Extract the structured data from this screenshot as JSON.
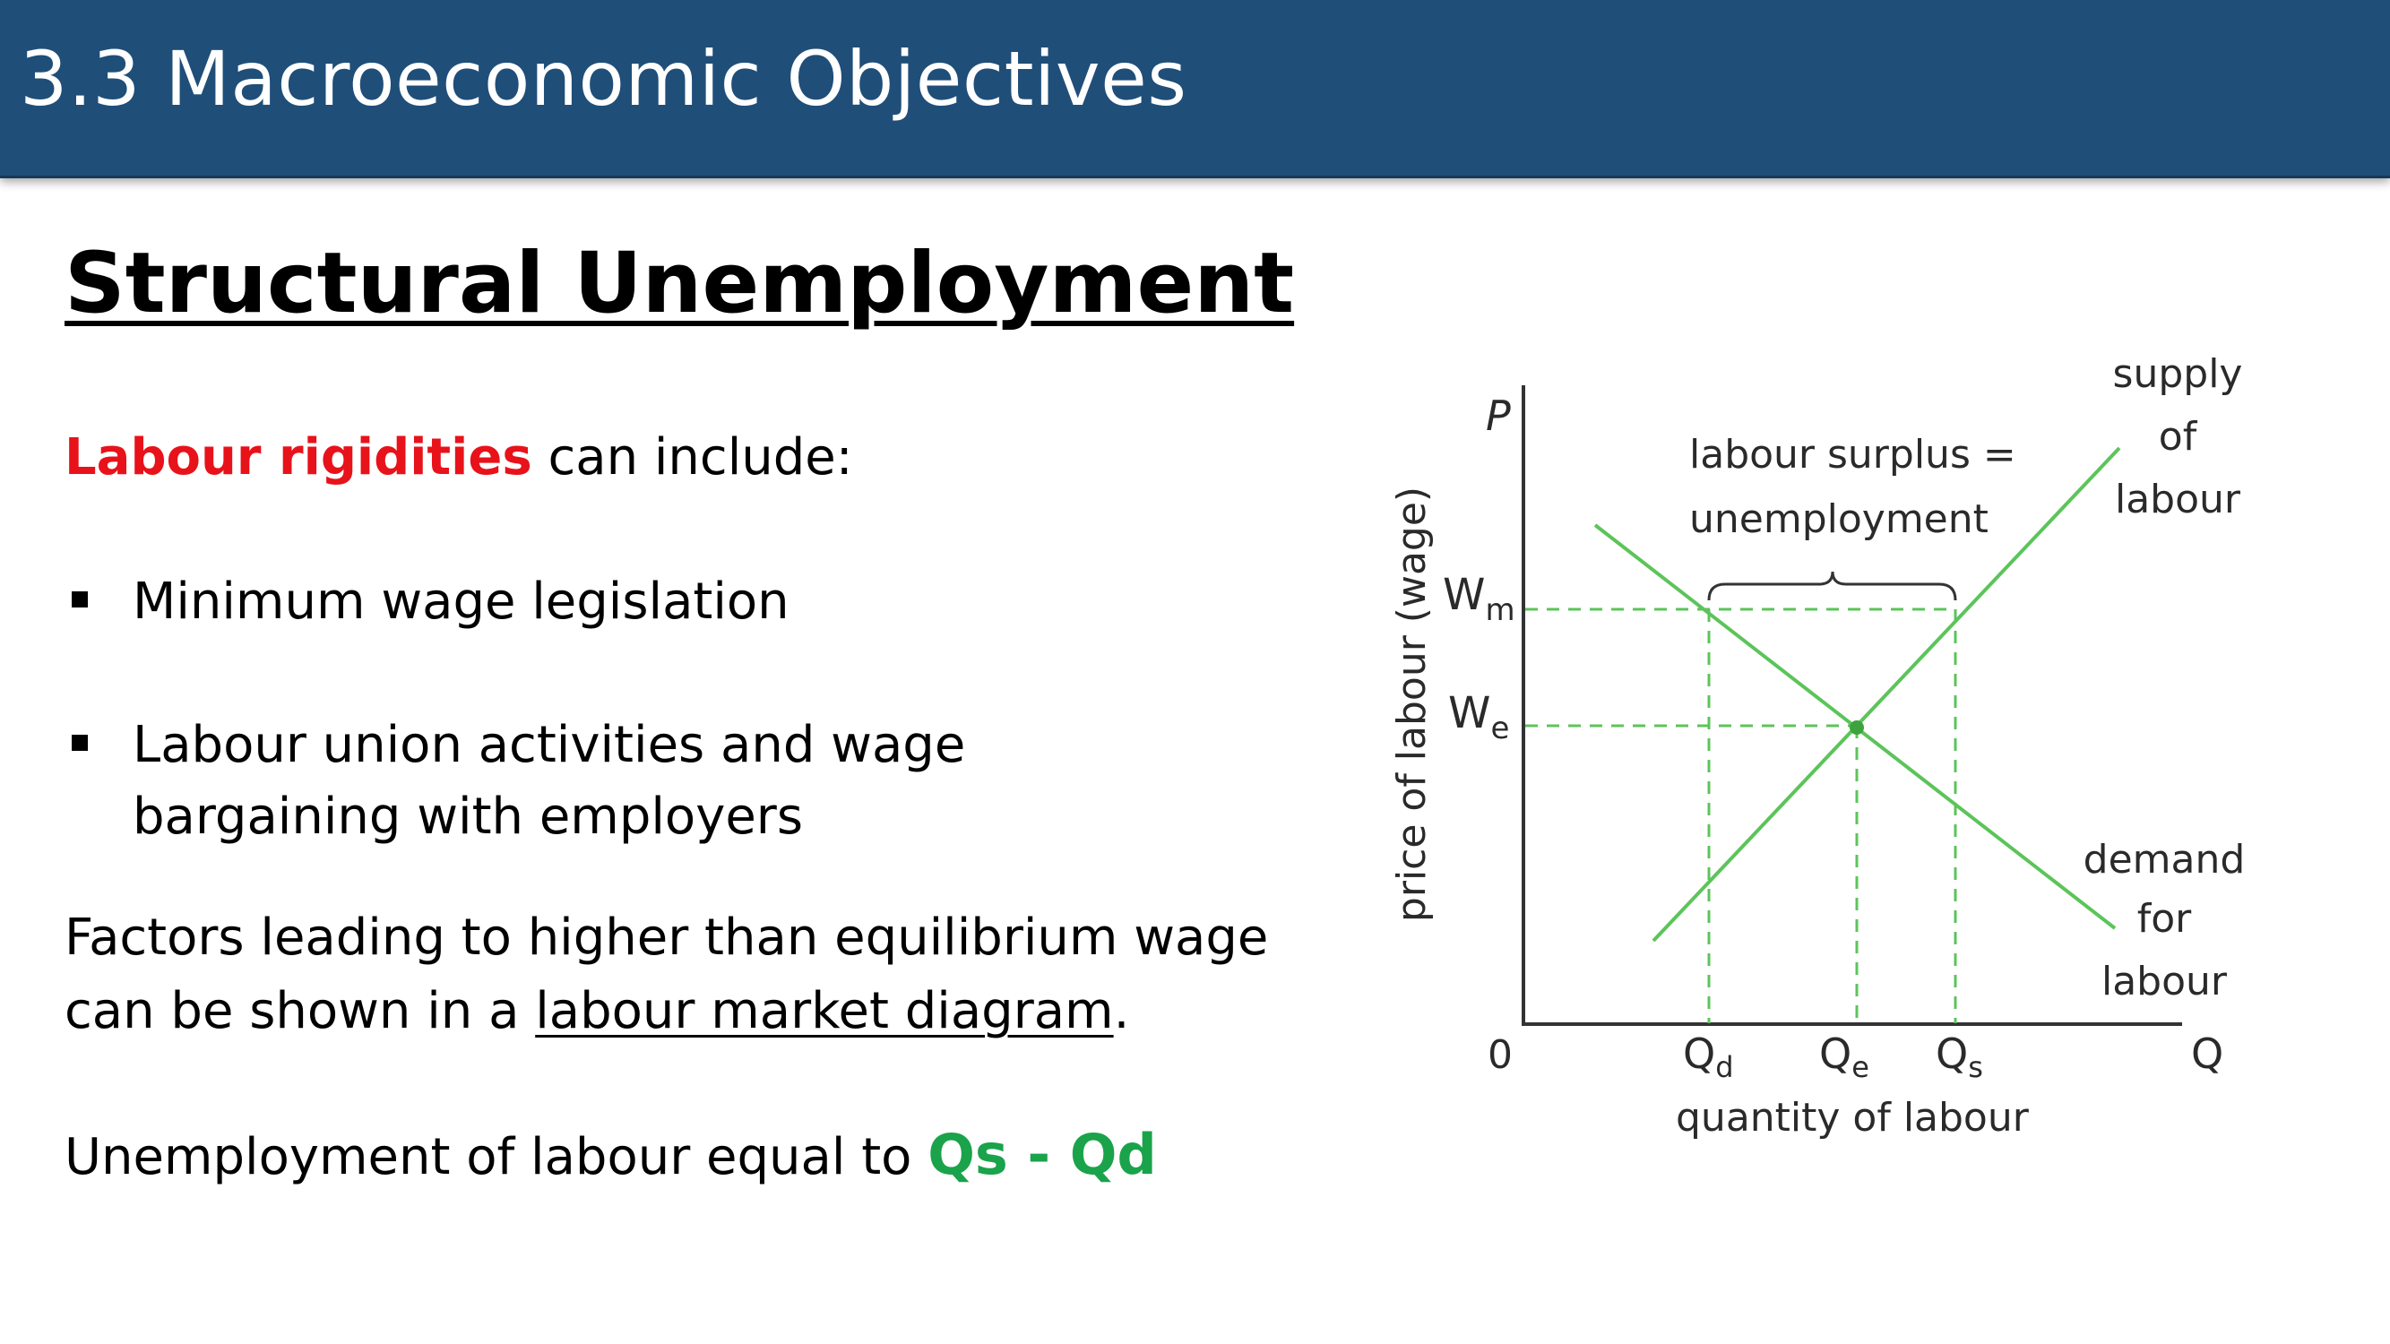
{
  "header": {
    "title": "3.3 Macroeconomic Objectives"
  },
  "slide": {
    "title": "Structural Unemployment",
    "intro_highlight": "Labour rigidities",
    "intro_rest": " can include:",
    "bullets": [
      {
        "lines": [
          "Minimum wage legislation"
        ]
      },
      {
        "lines": [
          "Labour union activities and wage",
          "bargaining with employers"
        ]
      }
    ],
    "factors_line1": "Factors leading to higher than equilibrium wage",
    "factors_line2_prefix": "can be shown in a ",
    "factors_link": "labour market diagram",
    "factors_suffix": ".",
    "unemployment_prefix": "Unemployment of labour equal to ",
    "unemployment_formula": "Qs - Qd",
    "colors": {
      "header": "#1f4e79",
      "highlight_red": "#e8121a",
      "formula_green": "#1aa34a",
      "curve_green": "#5cc45a"
    }
  },
  "diagram": {
    "y_axis_letter": "P",
    "y_axis_label": "price of labour (wage)",
    "x_axis_letter": "Q",
    "x_axis_label": "quantity of labour",
    "origin": "0",
    "wm_main": "W",
    "wm_sub": "m",
    "we_main": "W",
    "we_sub": "e",
    "qd_main": "Q",
    "qd_sub": "d",
    "qe_main": "Q",
    "qe_sub": "e",
    "qs_main": "Q",
    "qs_sub": "s",
    "surplus_line1": "labour surplus =",
    "surplus_line2": "unemployment",
    "supply_lines": [
      "supply",
      "of",
      "labour"
    ],
    "demand_lines": [
      "demand",
      "for",
      "labour"
    ]
  }
}
